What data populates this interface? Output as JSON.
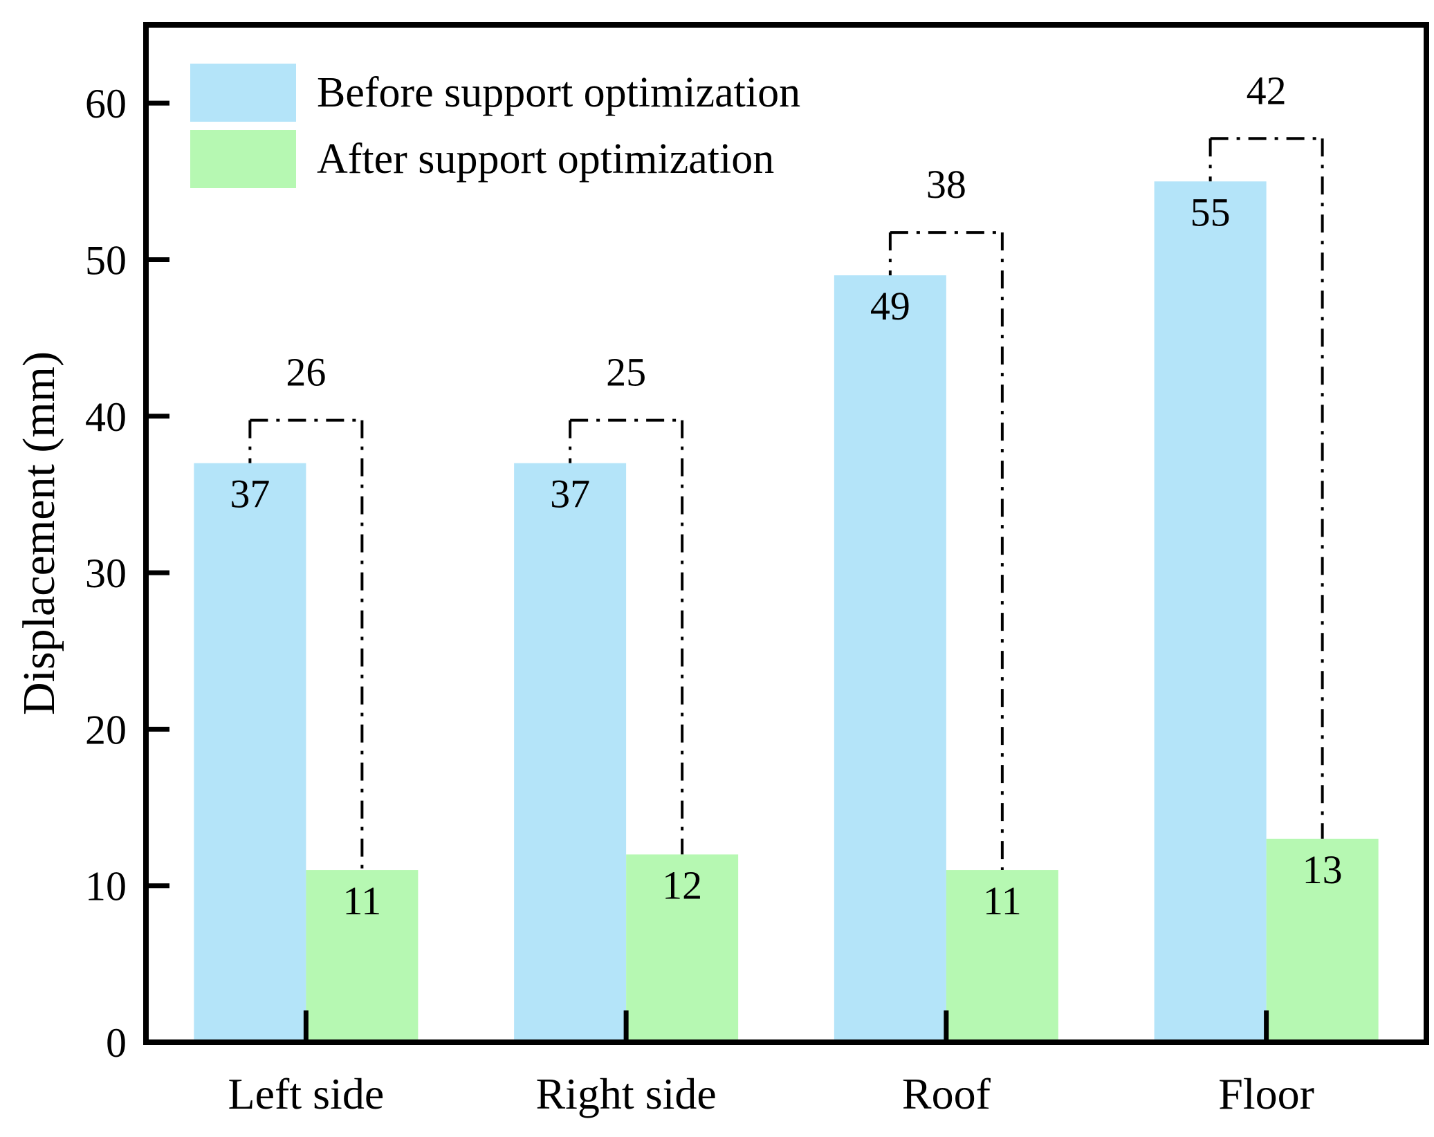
{
  "chart_data": {
    "type": "bar",
    "title": "",
    "xlabel": "",
    "ylabel": "Displacement (mm)",
    "categories": [
      "Left side",
      "Right side",
      "Roof",
      "Floor"
    ],
    "series": [
      {
        "name": "Before support optimization",
        "color": "#b4e4f9",
        "values": [
          37,
          37,
          49,
          55
        ]
      },
      {
        "name": "After support optimization",
        "color": "#b6f8b2",
        "values": [
          11,
          12,
          11,
          13
        ]
      }
    ],
    "bar_value_labels": {
      "before": [
        "37",
        "37",
        "49",
        "55"
      ],
      "after": [
        "11",
        "12",
        "11",
        "13"
      ]
    },
    "difference_labels": [
      "26",
      "25",
      "38",
      "42"
    ],
    "yticks": [
      "0",
      "10",
      "20",
      "30",
      "40",
      "50",
      "60"
    ],
    "ylim": [
      0,
      65
    ],
    "grid": false,
    "legend_position": "top-left",
    "annotation_style": "dash-dot-bracket",
    "colors": {
      "axis": "#000000",
      "text": "#000000",
      "before_fill": "#b4e4f9",
      "after_fill": "#b6f8b2"
    }
  }
}
